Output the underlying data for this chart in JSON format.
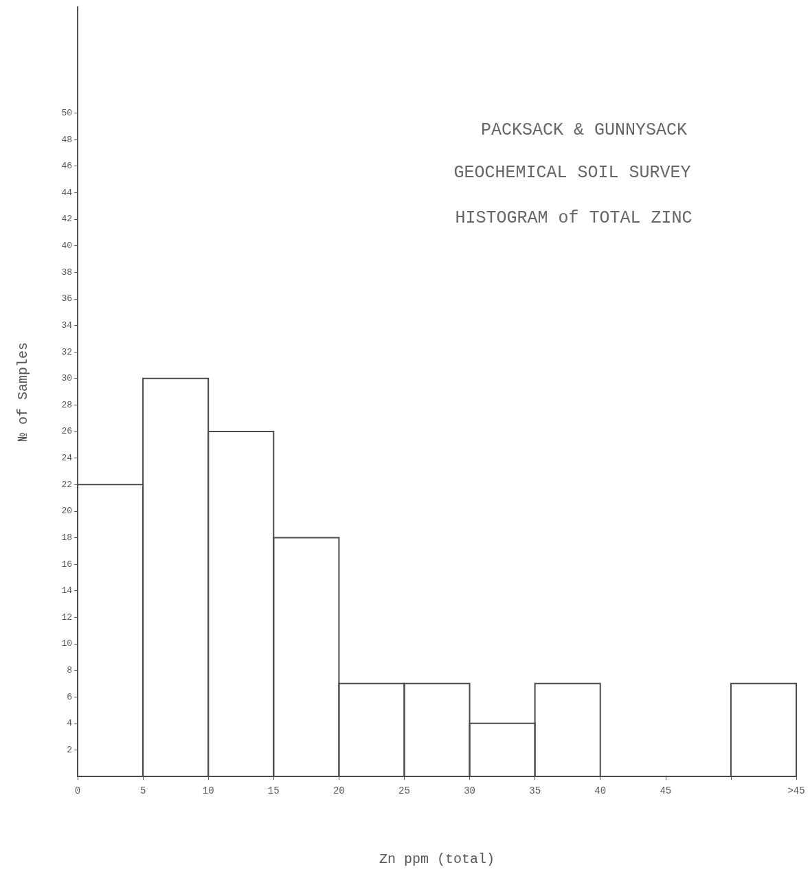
{
  "chart_data": {
    "type": "histogram",
    "title": "PACKSACK & GUNNYSACK",
    "subtitle": "GEOCHEMICAL SOIL SURVEY",
    "annotations": [
      "HISTOGRAM of TOTAL ZINC"
    ],
    "xlabel": "Zn ppm (total)",
    "ylabel": "№ of Samples",
    "bins": [
      0,
      5,
      10,
      15,
      20,
      25,
      30,
      35,
      40,
      45,
      50,
      55
    ],
    "values": [
      22,
      30,
      26,
      18,
      7,
      7,
      4,
      7,
      0,
      0,
      7
    ],
    "color": "#4a4a4a",
    "xlim": [
      0,
      55
    ],
    "xticks": [
      0,
      5,
      10,
      15,
      20,
      25,
      30,
      35,
      40,
      45,
      {
        "value": 50,
        "label": null
      },
      {
        "value": 55,
        "label": ">45"
      }
    ],
    "ylim": [
      0,
      58
    ],
    "yticks": [
      2,
      4,
      6,
      8,
      10,
      12,
      14,
      16,
      18,
      20,
      22,
      24,
      26,
      28,
      30,
      32,
      34,
      36,
      38,
      40,
      42,
      44,
      46,
      48,
      50
    ],
    "grid": false
  }
}
